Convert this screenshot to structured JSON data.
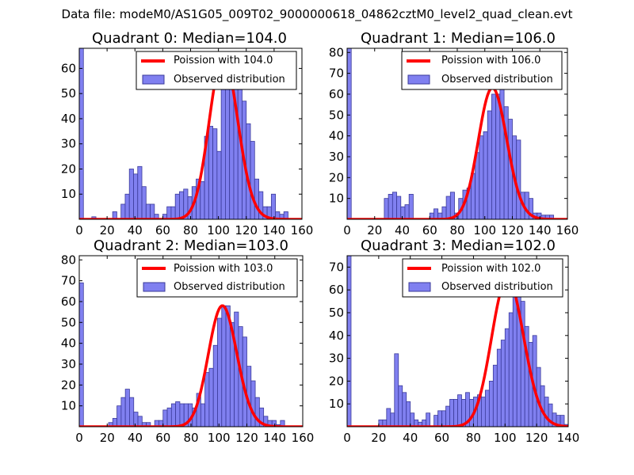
{
  "figure": {
    "title": "Data file: modeM0/AS1G05_009T02_9000000618_04862cztM0_level2_quad_clean.evt"
  },
  "colors": {
    "bar_fill": "#8080f0",
    "bar_stroke": "#3a3a9a",
    "curve": "#ff0000",
    "axes": "#000000"
  },
  "chart_data": [
    {
      "type": "bar",
      "title": "Quadrant 0: Median=104.0",
      "median": 104.0,
      "bin_width": 3,
      "xlim": [
        0,
        160
      ],
      "ylim": [
        0,
        68
      ],
      "xticks": [
        0,
        20,
        40,
        60,
        80,
        100,
        120,
        140,
        160
      ],
      "yticks": [
        10,
        20,
        30,
        40,
        50,
        60
      ],
      "legend": {
        "curve_label": "Poission with 104.0",
        "bars_label": "Observed distribution",
        "location": "top-right"
      },
      "bins": [
        [
          0,
          68
        ],
        [
          9,
          1
        ],
        [
          24,
          3
        ],
        [
          30,
          6
        ],
        [
          33,
          10
        ],
        [
          36,
          20
        ],
        [
          39,
          18
        ],
        [
          42,
          21
        ],
        [
          45,
          13
        ],
        [
          48,
          6
        ],
        [
          51,
          6
        ],
        [
          54,
          2
        ],
        [
          60,
          2
        ],
        [
          63,
          5
        ],
        [
          66,
          5
        ],
        [
          69,
          10
        ],
        [
          72,
          11
        ],
        [
          75,
          12
        ],
        [
          78,
          9
        ],
        [
          81,
          13
        ],
        [
          84,
          16
        ],
        [
          87,
          15
        ],
        [
          90,
          33
        ],
        [
          93,
          37
        ],
        [
          96,
          36
        ],
        [
          99,
          27
        ],
        [
          102,
          53
        ],
        [
          105,
          65
        ],
        [
          108,
          60
        ],
        [
          111,
          65
        ],
        [
          114,
          65
        ],
        [
          117,
          47
        ],
        [
          120,
          38
        ],
        [
          123,
          31
        ],
        [
          126,
          16
        ],
        [
          129,
          11
        ],
        [
          132,
          5
        ],
        [
          135,
          5
        ],
        [
          138,
          10
        ],
        [
          141,
          3
        ],
        [
          144,
          2
        ],
        [
          147,
          3
        ]
      ]
    },
    {
      "type": "bar",
      "title": "Quadrant 1: Median=106.0",
      "median": 106.0,
      "bin_width": 3,
      "xlim": [
        0,
        160
      ],
      "ylim": [
        0,
        82
      ],
      "xticks": [
        0,
        20,
        40,
        60,
        80,
        100,
        120,
        140,
        160
      ],
      "yticks": [
        10,
        20,
        30,
        40,
        50,
        60,
        70,
        80
      ],
      "legend": {
        "curve_label": "Poission with 106.0",
        "bars_label": "Observed distribution",
        "location": "top-right"
      },
      "bins": [
        [
          0,
          82
        ],
        [
          27,
          10
        ],
        [
          30,
          12
        ],
        [
          33,
          13
        ],
        [
          36,
          11
        ],
        [
          39,
          6
        ],
        [
          42,
          7
        ],
        [
          45,
          12
        ],
        [
          60,
          3
        ],
        [
          63,
          5
        ],
        [
          66,
          3
        ],
        [
          69,
          6
        ],
        [
          72,
          11
        ],
        [
          75,
          13
        ],
        [
          78,
          3
        ],
        [
          81,
          10
        ],
        [
          84,
          14
        ],
        [
          87,
          15
        ],
        [
          90,
          22
        ],
        [
          93,
          32
        ],
        [
          96,
          40
        ],
        [
          99,
          42
        ],
        [
          102,
          52
        ],
        [
          105,
          60
        ],
        [
          108,
          60
        ],
        [
          111,
          63
        ],
        [
          114,
          54
        ],
        [
          117,
          48
        ],
        [
          120,
          40
        ],
        [
          123,
          38
        ],
        [
          126,
          13
        ],
        [
          129,
          13
        ],
        [
          132,
          10
        ],
        [
          135,
          3
        ],
        [
          138,
          3
        ],
        [
          141,
          2
        ],
        [
          144,
          2
        ],
        [
          147,
          2
        ]
      ]
    },
    {
      "type": "bar",
      "title": "Quadrant 2: Median=103.0",
      "median": 103.0,
      "bin_width": 3,
      "xlim": [
        0,
        160
      ],
      "ylim": [
        0,
        82
      ],
      "xticks": [
        0,
        20,
        40,
        60,
        80,
        100,
        120,
        140,
        160
      ],
      "yticks": [
        10,
        20,
        30,
        40,
        50,
        60,
        70,
        80
      ],
      "legend": {
        "curve_label": "Poission with 103.0",
        "bars_label": "Observed distribution",
        "location": "top-right"
      },
      "bins": [
        [
          0,
          69
        ],
        [
          21,
          2
        ],
        [
          24,
          4
        ],
        [
          27,
          10
        ],
        [
          30,
          14
        ],
        [
          33,
          18
        ],
        [
          36,
          14
        ],
        [
          39,
          7
        ],
        [
          42,
          5
        ],
        [
          45,
          2
        ],
        [
          48,
          2
        ],
        [
          54,
          3
        ],
        [
          57,
          3
        ],
        [
          60,
          8
        ],
        [
          63,
          9
        ],
        [
          66,
          11
        ],
        [
          69,
          12
        ],
        [
          72,
          11
        ],
        [
          75,
          11
        ],
        [
          78,
          11
        ],
        [
          81,
          9
        ],
        [
          84,
          16
        ],
        [
          87,
          11
        ],
        [
          90,
          26
        ],
        [
          93,
          28
        ],
        [
          96,
          39
        ],
        [
          99,
          52
        ],
        [
          102,
          58
        ],
        [
          105,
          58
        ],
        [
          108,
          50
        ],
        [
          111,
          55
        ],
        [
          114,
          48
        ],
        [
          117,
          43
        ],
        [
          120,
          29
        ],
        [
          123,
          22
        ],
        [
          126,
          14
        ],
        [
          129,
          9
        ],
        [
          132,
          5
        ],
        [
          135,
          3
        ],
        [
          138,
          3
        ],
        [
          141,
          1
        ],
        [
          144,
          3
        ]
      ]
    },
    {
      "type": "bar",
      "title": "Quadrant 3: Median=102.0",
      "median": 102.0,
      "bin_width": 2.5,
      "xlim": [
        0,
        140
      ],
      "ylim": [
        0,
        75
      ],
      "xticks": [
        0,
        20,
        40,
        60,
        80,
        100,
        120,
        140
      ],
      "yticks": [
        10,
        20,
        30,
        40,
        50,
        60,
        70
      ],
      "legend": {
        "curve_label": "Poission with 102.0",
        "bars_label": "Observed distribution",
        "location": "top-right"
      },
      "bins": [
        [
          0,
          75
        ],
        [
          20,
          3
        ],
        [
          22.5,
          3
        ],
        [
          25,
          8
        ],
        [
          27.5,
          6
        ],
        [
          30,
          32
        ],
        [
          32.5,
          18
        ],
        [
          35,
          15
        ],
        [
          37.5,
          11
        ],
        [
          40,
          6
        ],
        [
          42.5,
          3
        ],
        [
          45,
          2
        ],
        [
          47.5,
          3
        ],
        [
          50,
          6
        ],
        [
          55,
          5
        ],
        [
          57.5,
          7
        ],
        [
          60,
          7
        ],
        [
          62.5,
          9
        ],
        [
          65,
          12
        ],
        [
          67.5,
          12
        ],
        [
          70,
          14
        ],
        [
          72.5,
          12
        ],
        [
          75,
          15
        ],
        [
          77.5,
          12
        ],
        [
          80,
          13
        ],
        [
          82.5,
          14
        ],
        [
          85,
          13
        ],
        [
          87.5,
          16
        ],
        [
          90,
          20
        ],
        [
          92.5,
          27
        ],
        [
          95,
          34
        ],
        [
          97.5,
          38
        ],
        [
          100,
          43
        ],
        [
          102.5,
          50
        ],
        [
          105,
          65
        ],
        [
          107.5,
          65
        ],
        [
          110,
          55
        ],
        [
          112.5,
          44
        ],
        [
          115,
          37
        ],
        [
          117.5,
          40
        ],
        [
          120,
          26
        ],
        [
          122.5,
          18
        ],
        [
          125,
          13
        ],
        [
          127.5,
          10
        ],
        [
          130,
          6
        ],
        [
          132.5,
          5
        ],
        [
          135,
          5
        ],
        [
          137.5,
          1
        ]
      ]
    }
  ]
}
